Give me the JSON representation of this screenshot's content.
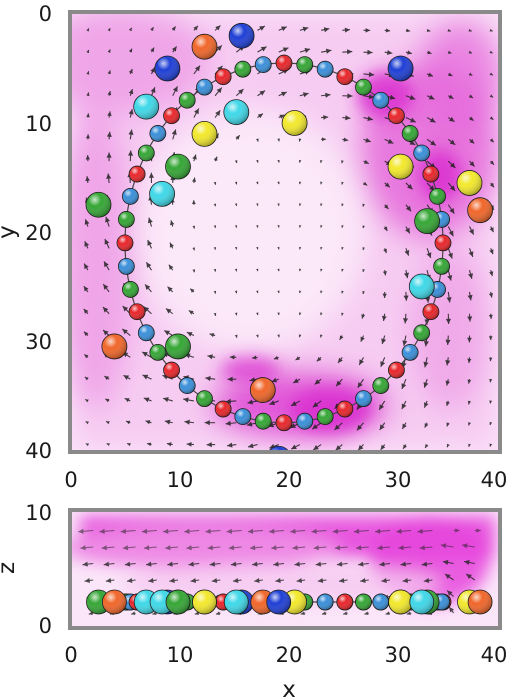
{
  "top_panel": {
    "x_label": "x",
    "y_label": "y",
    "x_ticks": [
      "0",
      "10",
      "20",
      "30",
      "40"
    ],
    "y_ticks": [
      "0",
      "10",
      "20",
      "30",
      "40"
    ],
    "x_range": [
      0,
      40
    ],
    "y_range": [
      0,
      40
    ],
    "y_axis_inverted": true,
    "ring_center": [
      20,
      21
    ],
    "ring_radius_xy": [
      15,
      16.5
    ],
    "ring_bead_colors": [
      "#e8262b",
      "#35a635",
      "#3a8fd9"
    ],
    "loose_particles": [
      {
        "x": 12.5,
        "y": 3,
        "color": "#f0662a"
      },
      {
        "x": 16,
        "y": 2,
        "color": "#1f3fd6"
      },
      {
        "x": 9,
        "y": 5,
        "color": "#1f3fd6"
      },
      {
        "x": 31,
        "y": 5,
        "color": "#1f3fd6"
      },
      {
        "x": 7,
        "y": 8.5,
        "color": "#3fd8e8"
      },
      {
        "x": 15.5,
        "y": 9,
        "color": "#3fd8e8"
      },
      {
        "x": 12.5,
        "y": 11,
        "color": "#f2e82c"
      },
      {
        "x": 21,
        "y": 10,
        "color": "#f2e82c"
      },
      {
        "x": 10,
        "y": 14,
        "color": "#35a635"
      },
      {
        "x": 31,
        "y": 14,
        "color": "#f2e82c"
      },
      {
        "x": 37.5,
        "y": 15.5,
        "color": "#f2e82c"
      },
      {
        "x": 8.5,
        "y": 16.5,
        "color": "#3fd8e8"
      },
      {
        "x": 2.5,
        "y": 17.5,
        "color": "#35a635"
      },
      {
        "x": 33.5,
        "y": 19,
        "color": "#35a635"
      },
      {
        "x": 38.5,
        "y": 18,
        "color": "#f0662a"
      },
      {
        "x": 33,
        "y": 25,
        "color": "#3fd8e8"
      },
      {
        "x": 4,
        "y": 30.5,
        "color": "#f0662a"
      },
      {
        "x": 10,
        "y": 30.5,
        "color": "#35a635"
      },
      {
        "x": 18,
        "y": 34.5,
        "color": "#f0662a"
      },
      {
        "x": 19.5,
        "y": 41,
        "color": "#1f3fd6"
      }
    ]
  },
  "bottom_panel": {
    "x_label": "x",
    "z_label": "z",
    "x_ticks": [
      "0",
      "10",
      "20",
      "30",
      "40"
    ],
    "z_ticks": [
      "0",
      "10"
    ],
    "x_range": [
      0,
      40
    ],
    "z_range": [
      0,
      10
    ],
    "bead_height_z": 2
  },
  "colors": {
    "flow_magenta": "#e033d6",
    "arrow": "#222222",
    "frame": "#8a8a8a"
  }
}
